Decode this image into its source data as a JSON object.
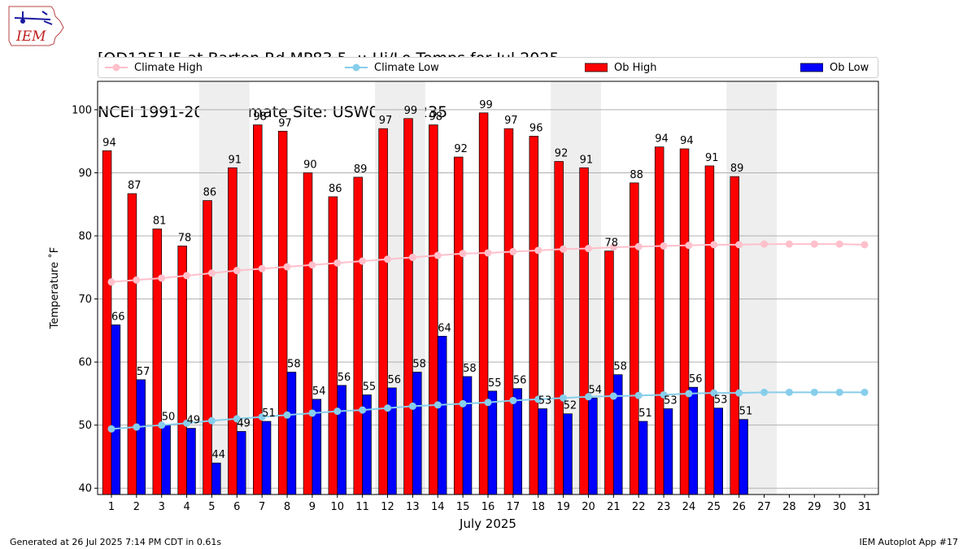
{
  "header": {
    "title_line1": "[OD125] I5 at Barton Rd MP83.5  :: Hi/Lo Temps for Jul 2025",
    "title_line2": "NCEI 1991-2020 Climate Site: USW00024235"
  },
  "logo": {
    "text": "IEM",
    "icon": "iem-logo-icon"
  },
  "footer": {
    "generated": "Generated at 26 Jul 2025 7:14 PM CDT in 0.61s",
    "app": "IEM Autoplot App #17"
  },
  "legend": {
    "climate_high": "Climate High",
    "climate_low": "Climate Low",
    "ob_high": "Ob High",
    "ob_low": "Ob Low"
  },
  "colors": {
    "ob_high": "#ff0000",
    "ob_low": "#0000ff",
    "climate_high": "#ffc0cb",
    "climate_low": "#87ceeb",
    "weekend_shade": "#eeeeee",
    "grid": "#b0b0b0"
  },
  "chart_data": {
    "type": "bar",
    "xlabel": "July 2025",
    "ylabel": "Temperature ˚F",
    "ylim": [
      39,
      104.5
    ],
    "yticks": [
      40,
      50,
      60,
      70,
      80,
      90,
      100
    ],
    "grid": "horizontal",
    "legend_placement": "top",
    "categories": [
      "1",
      "2",
      "3",
      "4",
      "5",
      "6",
      "7",
      "8",
      "9",
      "10",
      "11",
      "12",
      "13",
      "14",
      "15",
      "16",
      "17",
      "18",
      "19",
      "20",
      "21",
      "22",
      "23",
      "24",
      "25",
      "26",
      "27",
      "28",
      "29",
      "30",
      "31"
    ],
    "shaded_days": [
      "5",
      "6",
      "12",
      "13",
      "19",
      "20",
      "26",
      "27"
    ],
    "series": [
      {
        "name": "Ob High",
        "kind": "bar",
        "values": [
          93.5,
          86.7,
          81.1,
          78.4,
          85.6,
          90.8,
          97.6,
          96.6,
          90.0,
          86.2,
          89.3,
          97.0,
          98.6,
          97.6,
          92.5,
          99.5,
          97.0,
          95.8,
          91.8,
          90.8,
          77.6,
          88.4,
          94.1,
          93.8,
          91.1,
          89.4,
          null,
          null,
          null,
          null,
          null
        ],
        "labels": [
          "94",
          "87",
          "81",
          "78",
          "86",
          "91",
          "98",
          "97",
          "90",
          "86",
          "89",
          "97",
          "99",
          "98",
          "92",
          "99",
          "97",
          "96",
          "92",
          "91",
          "78",
          "88",
          "94",
          "94",
          "91",
          "89",
          "",
          "",
          "",
          "",
          ""
        ]
      },
      {
        "name": "Ob Low",
        "kind": "bar",
        "values": [
          65.9,
          57.2,
          50.0,
          49.5,
          44.0,
          49.0,
          50.6,
          58.4,
          54.1,
          56.3,
          54.8,
          55.9,
          58.4,
          64.1,
          57.7,
          55.4,
          55.8,
          52.6,
          51.8,
          54.3,
          58.0,
          50.6,
          52.6,
          56.0,
          52.7,
          50.9,
          null,
          null,
          null,
          null,
          null
        ],
        "labels": [
          "66",
          "57",
          "50",
          "49",
          "44",
          "49",
          "51",
          "58",
          "54",
          "56",
          "55",
          "56",
          "58",
          "64",
          "58",
          "55",
          "56",
          "53",
          "52",
          "54",
          "58",
          "51",
          "53",
          "56",
          "53",
          "51",
          "",
          "",
          "",
          "",
          ""
        ]
      },
      {
        "name": "Climate High",
        "kind": "line",
        "values": [
          72.7,
          73.0,
          73.3,
          73.7,
          74.1,
          74.5,
          74.8,
          75.1,
          75.4,
          75.7,
          76.0,
          76.3,
          76.6,
          76.9,
          77.2,
          77.3,
          77.5,
          77.7,
          77.9,
          78.0,
          78.2,
          78.3,
          78.4,
          78.5,
          78.6,
          78.6,
          78.7,
          78.7,
          78.7,
          78.7,
          78.6
        ]
      },
      {
        "name": "Climate Low",
        "kind": "line",
        "values": [
          49.4,
          49.7,
          50.0,
          50.3,
          50.7,
          51.0,
          51.3,
          51.6,
          51.9,
          52.2,
          52.4,
          52.7,
          53.0,
          53.2,
          53.4,
          53.6,
          53.9,
          54.1,
          54.3,
          54.5,
          54.6,
          54.7,
          54.8,
          55.0,
          55.1,
          55.1,
          55.2,
          55.2,
          55.2,
          55.2,
          55.2
        ]
      }
    ]
  }
}
